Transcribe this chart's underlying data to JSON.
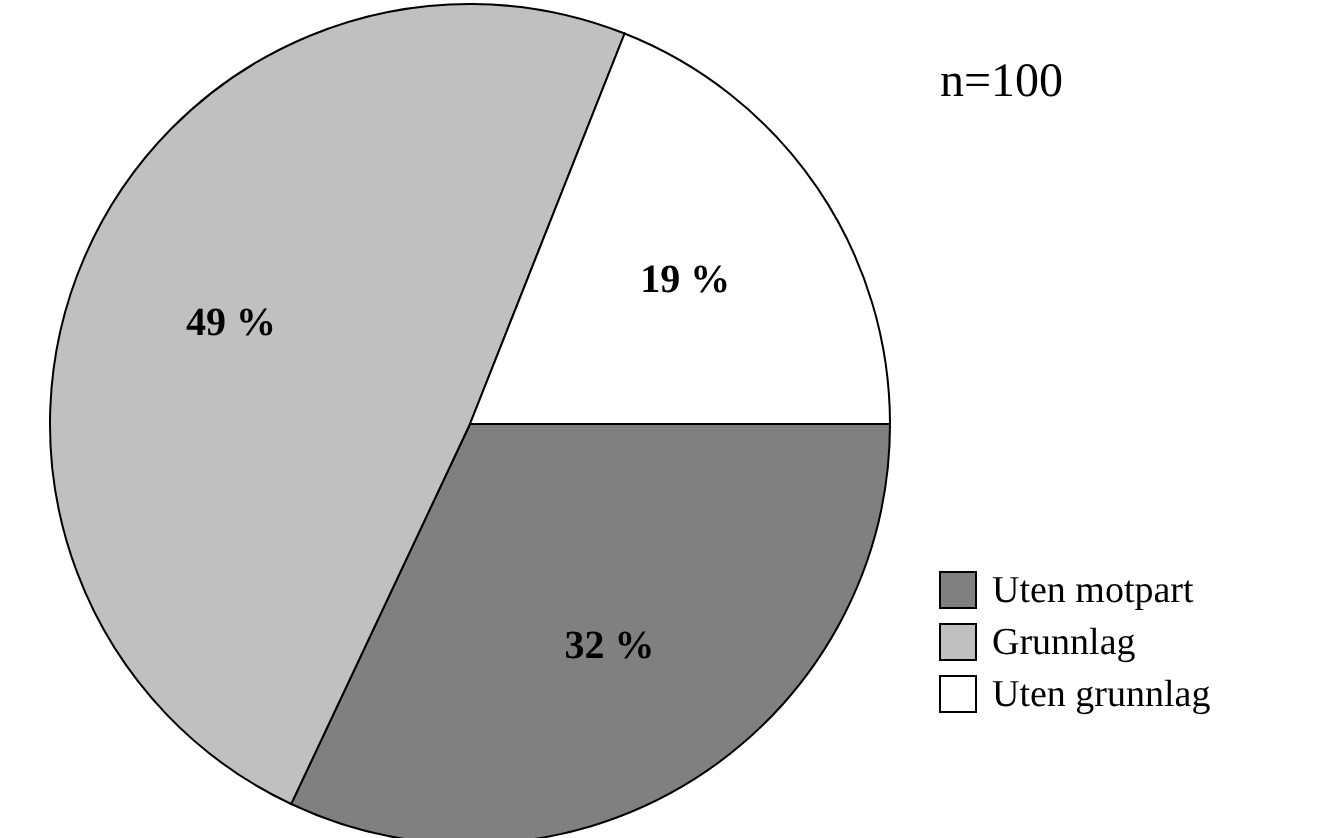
{
  "chart_data": {
    "type": "pie",
    "categories": [
      "Uten motpart",
      "Grunnlag",
      "Uten grunnlag"
    ],
    "values": [
      32,
      49,
      19
    ],
    "colors": [
      "#808080",
      "#c0c0c0",
      "#ffffff"
    ],
    "value_labels": [
      "32 %",
      "49 %",
      "19 %"
    ],
    "annotations": [
      "n=100"
    ],
    "legend": "bottom right"
  }
}
